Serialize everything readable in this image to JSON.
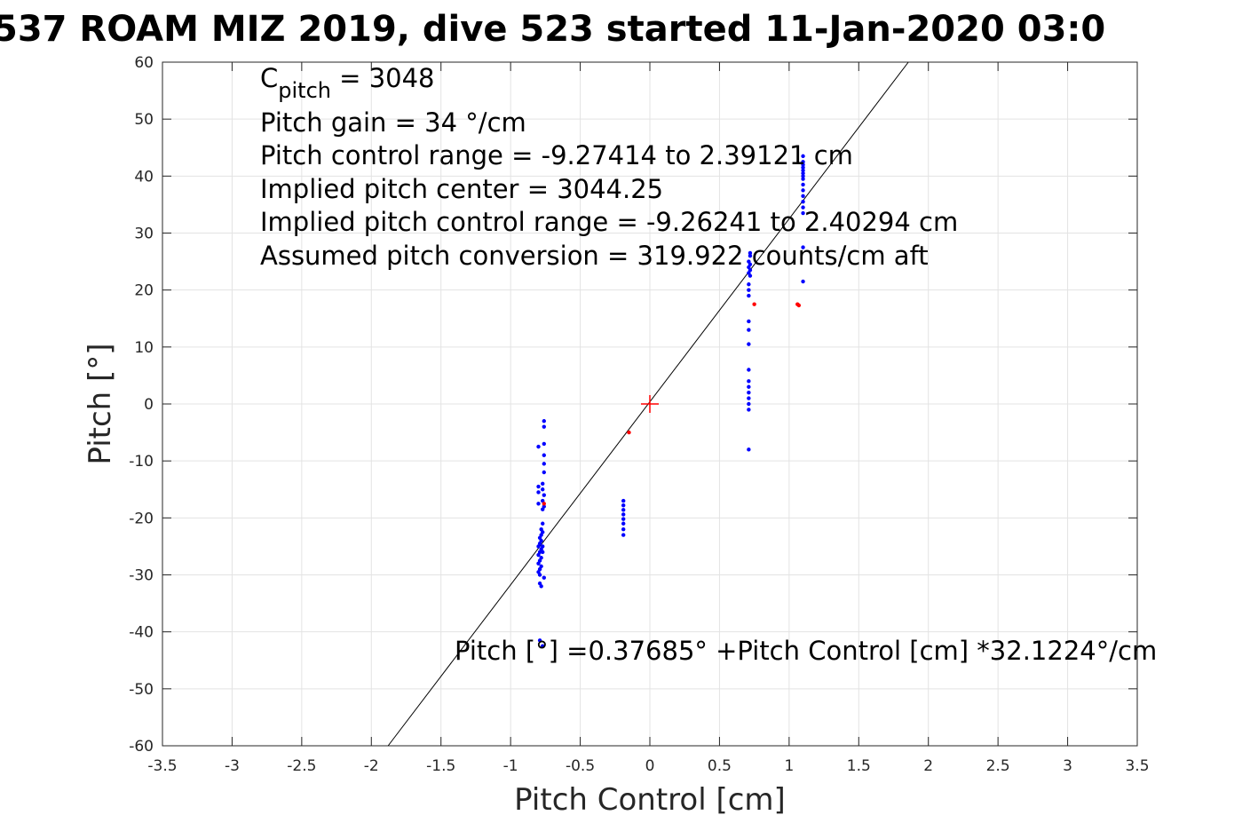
{
  "chart_data": {
    "type": "scatter",
    "title": "537 ROAM MIZ 2019, dive 523 started 11-Jan-2020 03:0",
    "xlabel": "Pitch Control [cm]",
    "ylabel": "Pitch [°]",
    "xlim": [
      -3.5,
      3.5
    ],
    "ylim": [
      -60,
      60
    ],
    "grid": true,
    "x_ticks": [
      -3.5,
      -3,
      -2.5,
      -2,
      -1.5,
      -1,
      -0.5,
      0,
      0.5,
      1,
      1.5,
      2,
      2.5,
      3,
      3.5
    ],
    "y_ticks": [
      -60,
      -50,
      -40,
      -30,
      -20,
      -10,
      0,
      10,
      20,
      30,
      40,
      50,
      60
    ],
    "annotations": {
      "cpitch_base": "C",
      "cpitch_sub": "pitch",
      "cpitch_value": " = 3048",
      "gain": "Pitch gain = 34 °/cm",
      "control_range": "Pitch control range = -9.27414 to 2.39121 cm",
      "implied_center": "Implied pitch center = 3044.25",
      "implied_range": "Implied pitch control range = -9.26241 to 2.40294 cm",
      "conversion": "Assumed pitch conversion = 319.922 counts/cm aft",
      "fit_equation": "Pitch [°] =0.37685° +Pitch Control [cm] *32.1224°/cm"
    },
    "fit_line": {
      "intercept": 0.37685,
      "slope": 32.1224,
      "color": "#000000"
    },
    "center_marker": {
      "x": 0,
      "y": 0,
      "color": "#ff0000"
    },
    "series": [
      {
        "color": "#0000ff",
        "points": [
          [
            -0.76,
            -3
          ],
          [
            -0.76,
            -4
          ],
          [
            -0.76,
            -7
          ],
          [
            -0.76,
            -9
          ],
          [
            -0.76,
            -10.5
          ],
          [
            -0.76,
            -12
          ],
          [
            -0.77,
            -14
          ],
          [
            -0.77,
            -15
          ],
          [
            -0.76,
            -16
          ],
          [
            -0.77,
            -17
          ],
          [
            -0.76,
            -18
          ],
          [
            -0.77,
            -18.5
          ],
          [
            -0.8,
            -7.5
          ],
          [
            -0.8,
            -14.5
          ],
          [
            -0.8,
            -15.5
          ],
          [
            -0.8,
            -17.5
          ],
          [
            -0.77,
            -21
          ],
          [
            -0.78,
            -22
          ],
          [
            -0.77,
            -22.5
          ],
          [
            -0.78,
            -23
          ],
          [
            -0.79,
            -23.5
          ],
          [
            -0.78,
            -24
          ],
          [
            -0.79,
            -24.5
          ],
          [
            -0.77,
            -25
          ],
          [
            -0.8,
            -25
          ],
          [
            -0.78,
            -25.5
          ],
          [
            -0.79,
            -26
          ],
          [
            -0.77,
            -26
          ],
          [
            -0.8,
            -26.5
          ],
          [
            -0.78,
            -27
          ],
          [
            -0.79,
            -27.5
          ],
          [
            -0.8,
            -28
          ],
          [
            -0.78,
            -28.5
          ],
          [
            -0.79,
            -29
          ],
          [
            -0.8,
            -29.5
          ],
          [
            -0.79,
            -30
          ],
          [
            -0.76,
            -30.5
          ],
          [
            -0.79,
            -31.5
          ],
          [
            -0.78,
            -32
          ],
          [
            -0.79,
            -41.5
          ],
          [
            -0.77,
            -42.5
          ],
          [
            -0.19,
            -17
          ],
          [
            -0.19,
            -17.8
          ],
          [
            -0.19,
            -18.6
          ],
          [
            -0.19,
            -19.4
          ],
          [
            -0.19,
            -20.2
          ],
          [
            -0.19,
            -21
          ],
          [
            -0.19,
            -22
          ],
          [
            -0.19,
            -23
          ],
          [
            0.71,
            -8
          ],
          [
            0.71,
            -1
          ],
          [
            0.71,
            0
          ],
          [
            0.71,
            1
          ],
          [
            0.71,
            2
          ],
          [
            0.71,
            3
          ],
          [
            0.71,
            4
          ],
          [
            0.71,
            6
          ],
          [
            0.71,
            10.5
          ],
          [
            0.71,
            13
          ],
          [
            0.71,
            14.5
          ],
          [
            0.71,
            19
          ],
          [
            0.71,
            20
          ],
          [
            0.71,
            21
          ],
          [
            0.72,
            22.5
          ],
          [
            0.71,
            23
          ],
          [
            0.72,
            23.5
          ],
          [
            0.71,
            24
          ],
          [
            0.72,
            24.5
          ],
          [
            0.71,
            25
          ],
          [
            0.72,
            26
          ],
          [
            0.72,
            26.5
          ],
          [
            1.1,
            21.5
          ],
          [
            1.1,
            27.5
          ],
          [
            1.1,
            33.5
          ],
          [
            1.1,
            34.5
          ],
          [
            1.1,
            35.5
          ],
          [
            1.1,
            36.5
          ],
          [
            1.1,
            37.5
          ],
          [
            1.1,
            38.5
          ],
          [
            1.1,
            39.5
          ],
          [
            1.1,
            40
          ],
          [
            1.1,
            40.5
          ],
          [
            1.1,
            41
          ],
          [
            1.1,
            41.5
          ],
          [
            1.1,
            42
          ],
          [
            1.1,
            42.5
          ],
          [
            1.1,
            43.5
          ]
        ]
      },
      {
        "color": "#ff0000",
        "points": [
          [
            -0.76,
            -17.5
          ],
          [
            -0.15,
            -5
          ],
          [
            0.75,
            17.5
          ],
          [
            1.06,
            17.5
          ],
          [
            1.07,
            17.3
          ]
        ]
      }
    ]
  }
}
